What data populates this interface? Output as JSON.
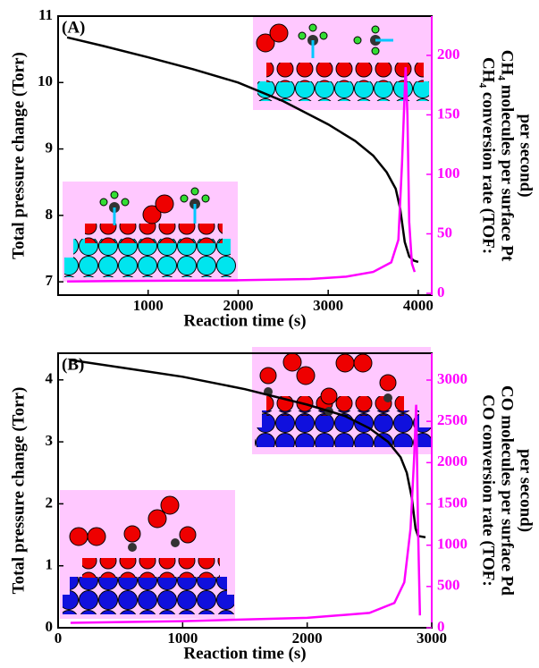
{
  "chart_data": [
    {
      "type": "line",
      "label": "(A)",
      "xlabel": "Reaction time (s)",
      "ylabel": "Total pressure change (Torr)",
      "y2label": [
        "CH₄ conversion rate (TOF:",
        "CH₄ molecules per surface Pt",
        "per second)"
      ],
      "xlim": [
        0,
        4150
      ],
      "xticks": [
        1000,
        2000,
        3000,
        4000
      ],
      "ylim": [
        6.8,
        11
      ],
      "yticks": [
        7,
        8,
        9,
        10,
        11
      ],
      "y2lim": [
        -1.5,
        233
      ],
      "y2ticks": [
        0,
        50,
        100,
        150,
        200
      ],
      "y2color": "#ff00ff",
      "series": [
        {
          "color": "#000000",
          "x": [
            100,
            500,
            1000,
            1500,
            2000,
            2500,
            3000,
            3300,
            3500,
            3650,
            3750,
            3800,
            3850,
            3900,
            3950,
            4000
          ],
          "values": [
            10.68,
            10.55,
            10.38,
            10.2,
            10.0,
            9.72,
            9.37,
            9.12,
            8.9,
            8.65,
            8.4,
            8.1,
            7.6,
            7.38,
            7.32,
            7.3
          ]
        },
        {
          "color": "#ff00ff",
          "axis": "y2",
          "x": [
            100,
            1000,
            2000,
            2800,
            3200,
            3500,
            3700,
            3780,
            3820,
            3860,
            3880,
            3900,
            3930,
            3960
          ],
          "values": [
            10,
            10.5,
            11,
            12,
            14,
            18,
            26,
            45,
            110,
            190,
            150,
            60,
            25,
            18
          ]
        }
      ]
    },
    {
      "type": "line",
      "label": "(B)",
      "xlabel": "Reaction time (s)",
      "ylabel": "Total pressure change (Torr)",
      "y2label": [
        "CO conversion rate (TOF:",
        "CO molecules per surface Pd",
        "per second)"
      ],
      "xlim": [
        0,
        3000
      ],
      "xticks": [
        0,
        1000,
        2000,
        3000
      ],
      "ylim": [
        0,
        4.43
      ],
      "yticks": [
        0,
        1,
        2,
        3,
        4
      ],
      "y2lim": [
        0,
        3325
      ],
      "y2ticks": [
        0,
        500,
        1000,
        1500,
        2000,
        2500,
        3000
      ],
      "y2color": "#ff00ff",
      "series": [
        {
          "color": "#000000",
          "x": [
            100,
            500,
            1000,
            1500,
            2000,
            2300,
            2500,
            2650,
            2750,
            2800,
            2840,
            2870,
            2890,
            2950
          ],
          "values": [
            4.32,
            4.2,
            4.05,
            3.85,
            3.6,
            3.42,
            3.22,
            3.0,
            2.75,
            2.5,
            2.1,
            1.6,
            1.48,
            1.46
          ]
        },
        {
          "color": "#ff00ff",
          "axis": "y2",
          "x": [
            100,
            1000,
            2000,
            2500,
            2700,
            2780,
            2830,
            2860,
            2875,
            2890,
            2905
          ],
          "values": [
            60,
            80,
            120,
            180,
            300,
            550,
            1200,
            2100,
            2700,
            1200,
            150
          ]
        }
      ]
    }
  ]
}
